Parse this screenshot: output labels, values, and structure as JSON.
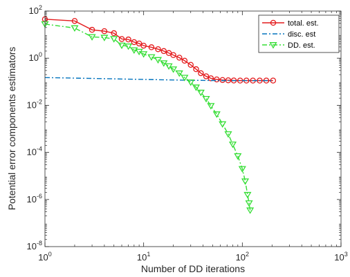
{
  "chart_data": {
    "type": "line",
    "title": "",
    "xlabel": "Number of DD iterations",
    "ylabel": "Potential error components estimators",
    "xscale": "log",
    "yscale": "log",
    "xlim": [
      1,
      1000
    ],
    "ylim": [
      1e-08,
      100
    ],
    "x_ticks": [
      {
        "value": 1,
        "base": "10",
        "exp": "0"
      },
      {
        "value": 10,
        "base": "10",
        "exp": "1"
      },
      {
        "value": 100,
        "base": "10",
        "exp": "2"
      },
      {
        "value": 1000,
        "base": "10",
        "exp": "3"
      }
    ],
    "y_ticks": [
      {
        "value": 1e-08,
        "base": "10",
        "exp": "-8"
      },
      {
        "value": 1e-06,
        "base": "10",
        "exp": "-6"
      },
      {
        "value": 0.0001,
        "base": "10",
        "exp": "-4"
      },
      {
        "value": 0.01,
        "base": "10",
        "exp": "-2"
      },
      {
        "value": 1,
        "base": "10",
        "exp": "0"
      },
      {
        "value": 100,
        "base": "10",
        "exp": "2"
      }
    ],
    "grid": false,
    "legend_position": "top-right",
    "series": [
      {
        "name": "total. est.",
        "color": "#e41a1c",
        "line_style": "solid",
        "marker": "circle",
        "points": [
          [
            1,
            45
          ],
          [
            2,
            38
          ],
          [
            3,
            16
          ],
          [
            4,
            14
          ],
          [
            5,
            11.5
          ],
          [
            6,
            6.5
          ],
          [
            7,
            6.2
          ],
          [
            8,
            4.8
          ],
          [
            9,
            4.2
          ],
          [
            10,
            3.4
          ],
          [
            12,
            2.9
          ],
          [
            14,
            2.4
          ],
          [
            16,
            2.0
          ],
          [
            18,
            1.65
          ],
          [
            20,
            1.35
          ],
          [
            23,
            1.05
          ],
          [
            26,
            0.78
          ],
          [
            30,
            0.52
          ],
          [
            34,
            0.34
          ],
          [
            38,
            0.23
          ],
          [
            43,
            0.17
          ],
          [
            48,
            0.14
          ],
          [
            55,
            0.125
          ],
          [
            63,
            0.118
          ],
          [
            72,
            0.115
          ],
          [
            82,
            0.113
          ],
          [
            95,
            0.112
          ],
          [
            110,
            0.112
          ],
          [
            128,
            0.112
          ],
          [
            150,
            0.112
          ],
          [
            175,
            0.112
          ],
          [
            205,
            0.112
          ]
        ]
      },
      {
        "name": "disc. est",
        "color": "#0072bd",
        "line_style": "dashdot",
        "marker": "none",
        "points": [
          [
            1,
            0.15
          ],
          [
            3,
            0.138
          ],
          [
            10,
            0.125
          ],
          [
            30,
            0.115
          ],
          [
            60,
            0.112
          ],
          [
            205,
            0.111
          ]
        ]
      },
      {
        "name": "DD. est.",
        "color": "#33dd33",
        "line_style": "dashdot",
        "marker": "triangle-down",
        "points": [
          [
            1,
            28
          ],
          [
            2,
            19
          ],
          [
            3,
            8
          ],
          [
            4,
            7.5
          ],
          [
            5,
            6.6
          ],
          [
            6,
            3.5
          ],
          [
            7,
            3.2
          ],
          [
            8,
            2.2
          ],
          [
            9,
            1.9
          ],
          [
            10,
            1.5
          ],
          [
            12,
            1.12
          ],
          [
            14,
            0.85
          ],
          [
            16,
            0.62
          ],
          [
            18,
            0.46
          ],
          [
            20,
            0.34
          ],
          [
            23,
            0.23
          ],
          [
            26,
            0.15
          ],
          [
            30,
            0.095
          ],
          [
            34,
            0.058
          ],
          [
            38,
            0.035
          ],
          [
            43,
            0.019
          ],
          [
            48,
            0.0095
          ],
          [
            55,
            0.0042
          ],
          [
            63,
            0.0016
          ],
          [
            72,
            0.0006
          ],
          [
            80,
            0.00022
          ],
          [
            90,
            7e-05
          ],
          [
            100,
            2e-05
          ],
          [
            107,
            6e-06
          ],
          [
            113,
            1.6e-06
          ],
          [
            117,
            7e-07
          ],
          [
            120,
            3.5e-07
          ]
        ]
      }
    ]
  }
}
